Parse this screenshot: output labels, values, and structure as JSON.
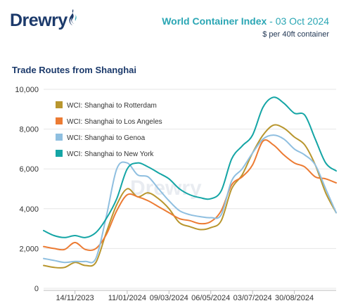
{
  "logo": {
    "text": "Drewry"
  },
  "header": {
    "title": "World Container Index",
    "date": " - 03 Oct 2024",
    "unit": "$ per 40ft container"
  },
  "section_title": "Trade Routes from Shanghai",
  "watermark": "Drewry",
  "colors": {
    "rotterdam": "#b8962e",
    "los_angeles": "#ec7b33",
    "genoa": "#8fbfe0",
    "new_york": "#14a5a5"
  },
  "chart_data": {
    "type": "line",
    "title": "Trade Routes from Shanghai",
    "xlabel": "",
    "ylabel": "",
    "ylim": [
      0,
      10000
    ],
    "yticks": [
      0,
      2000,
      4000,
      6000,
      8000,
      10000
    ],
    "ytick_labels": [
      "0",
      "2,000",
      "4,000",
      "6,000",
      "8,000",
      "10,000"
    ],
    "xtick_labels": [
      "14/11/2023",
      "11/01/2024",
      "09/03/2024",
      "06/05/2024",
      "03/07/2024",
      "30/08/2024"
    ],
    "legend_position": "top-left",
    "grid": "horizontal",
    "x": [
      "12/10/2023",
      "26/10/2023",
      "09/11/2023",
      "23/11/2023",
      "07/12/2023",
      "21/12/2023",
      "28/12/2023",
      "04/01/2024",
      "11/01/2024",
      "18/01/2024",
      "25/01/2024",
      "08/02/2024",
      "22/02/2024",
      "07/03/2024",
      "21/03/2024",
      "04/04/2024",
      "18/04/2024",
      "02/05/2024",
      "16/05/2024",
      "30/05/2024",
      "13/06/2024",
      "27/06/2024",
      "11/07/2024",
      "25/07/2024",
      "08/08/2024",
      "22/08/2024",
      "05/09/2024",
      "19/09/2024",
      "03/10/2024"
    ],
    "series": [
      {
        "name": "WCI: Shanghai to Rotterdam",
        "values": [
          1150,
          1050,
          1050,
          1300,
          1150,
          1300,
          2800,
          4200,
          5000,
          4600,
          4800,
          4500,
          4000,
          3300,
          3100,
          2950,
          3050,
          3400,
          5000,
          5700,
          6800,
          7700,
          8200,
          8050,
          7600,
          7200,
          6200,
          4800,
          3800
        ]
      },
      {
        "name": "WCI: Shanghai to Los Angeles",
        "values": [
          2100,
          2000,
          1950,
          2300,
          1950,
          2000,
          2700,
          3900,
          4700,
          4600,
          4400,
          4100,
          3800,
          3500,
          3400,
          3250,
          3350,
          3900,
          5200,
          5600,
          6200,
          7400,
          7200,
          6700,
          6300,
          6100,
          5600,
          5500,
          5300
        ]
      },
      {
        "name": "WCI: Shanghai to Genoa",
        "values": [
          1500,
          1400,
          1300,
          1350,
          1350,
          1500,
          3600,
          6000,
          6300,
          5700,
          5600,
          5000,
          4400,
          3900,
          3700,
          3600,
          3550,
          3700,
          5400,
          6000,
          6800,
          7500,
          7700,
          7500,
          7000,
          6700,
          6200,
          5000,
          3800
        ]
      },
      {
        "name": "WCI: Shanghai to New York",
        "values": [
          2900,
          2650,
          2550,
          2650,
          2550,
          2800,
          3500,
          4500,
          6000,
          6300,
          6100,
          5800,
          5500,
          5000,
          4700,
          4550,
          4500,
          4900,
          6500,
          7150,
          7700,
          9100,
          9600,
          9300,
          8800,
          8700,
          7500,
          6300,
          5900
        ]
      }
    ]
  }
}
